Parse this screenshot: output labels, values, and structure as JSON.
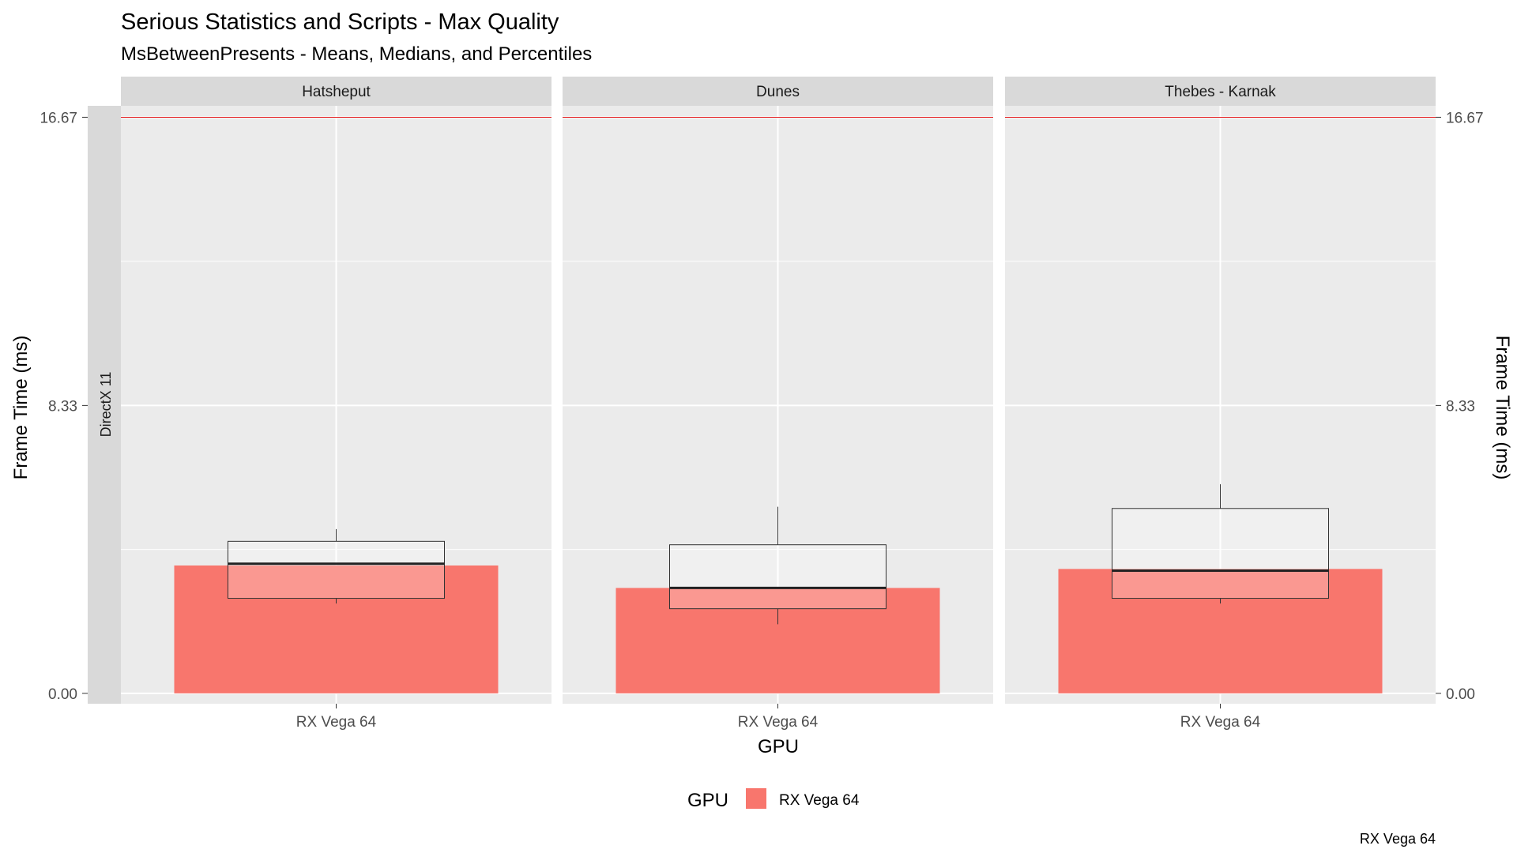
{
  "chart_data": {
    "type": "bar",
    "title": "Serious Statistics and Scripts - Max Quality",
    "subtitle": "MsBetweenPresents - Means, Medians, and Percentiles",
    "ylabel": "Frame Time (ms)",
    "ylabel_right": "Frame Time (ms)",
    "xlabel": "GPU",
    "row_strip": "DirectX 11",
    "y_ticks": [
      "0.00",
      "8.33",
      "16.67"
    ],
    "y_tick_values": [
      0,
      8.33,
      16.67
    ],
    "ylim": [
      -0.3,
      17.0
    ],
    "reference_line": {
      "value": 16.67,
      "color": "#e41a1c"
    },
    "legend": {
      "title": "GPU",
      "entries": [
        {
          "label": "RX Vega 64",
          "color": "#F8766D"
        }
      ],
      "position": "bottom"
    },
    "caption": "RX Vega 64",
    "grid": true,
    "colors": {
      "bar": "#F8766D",
      "panel": "#EBEBEB",
      "strip": "#D9D9D9"
    },
    "panels": [
      {
        "name": "Hatsheput",
        "category": "RX Vega 64",
        "mean": 3.7,
        "box": {
          "whisker_low": 2.6,
          "q1": 2.75,
          "median": 3.75,
          "q3": 4.4,
          "whisker_high": 4.75
        }
      },
      {
        "name": "Dunes",
        "category": "RX Vega 64",
        "mean": 3.05,
        "box": {
          "whisker_low": 2.0,
          "q1": 2.45,
          "median": 3.05,
          "q3": 4.3,
          "whisker_high": 5.4
        }
      },
      {
        "name": "Thebes - Karnak",
        "category": "RX Vega 64",
        "mean": 3.6,
        "box": {
          "whisker_low": 2.6,
          "q1": 2.75,
          "median": 3.55,
          "q3": 5.35,
          "whisker_high": 6.05
        }
      }
    ]
  }
}
